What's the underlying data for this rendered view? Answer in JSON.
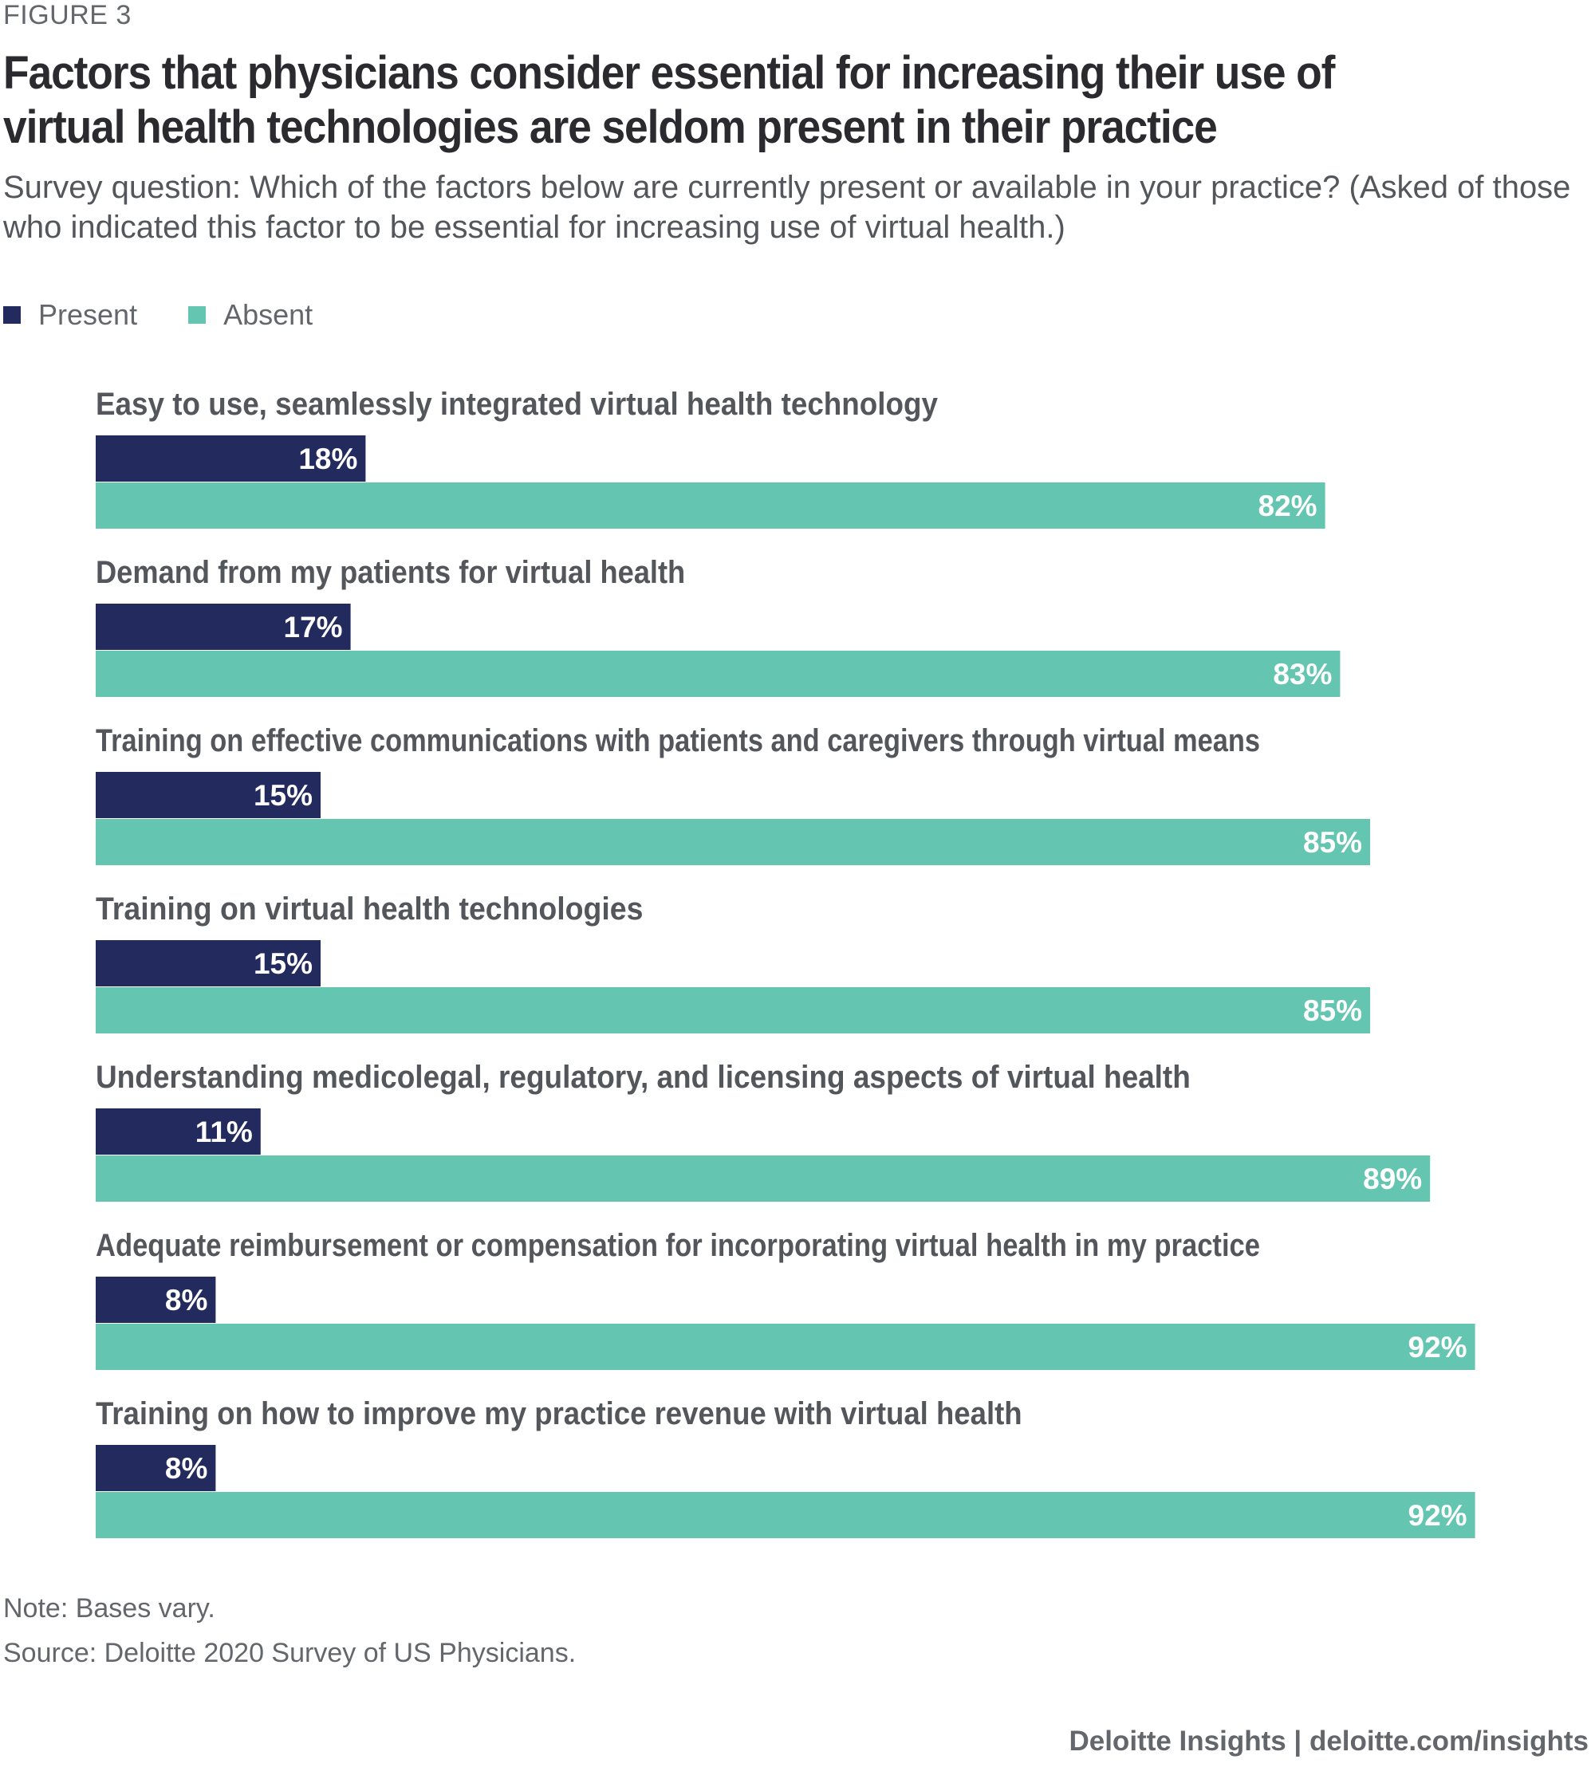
{
  "figure_label": "FIGURE 3",
  "colors": {
    "present": "#222a5e",
    "absent": "#64c5b1"
  },
  "chart_data": {
    "type": "bar",
    "orientation": "horizontal",
    "title": "Factors that physicians consider essential for increasing their use of virtual health technologies are seldom present in their practice",
    "subtitle": "Survey question: Which of the factors below are currently present or available in your practice? (Asked of those who indicated this factor to be essential for increasing use of virtual health.)",
    "legend_placement": "top-left",
    "grid": false,
    "xlim": [
      0,
      100
    ],
    "categories": [
      "Easy to use, seamlessly integrated virtual health technology",
      "Demand from my patients for virtual health",
      "Training on effective communications with patients and caregivers through virtual means",
      "Training on virtual health technologies",
      "Understanding medicolegal, regulatory, and licensing aspects of virtual health",
      "Adequate reimbursement or compensation for incorporating virtual health in my practice",
      "Training on how to improve my practice revenue with virtual health"
    ],
    "series": [
      {
        "name": "Present",
        "values": [
          18,
          17,
          15,
          15,
          11,
          8,
          8
        ]
      },
      {
        "name": "Absent",
        "values": [
          82,
          83,
          85,
          85,
          89,
          92,
          92
        ]
      }
    ],
    "value_suffix": "%"
  },
  "note": "Note: Bases vary.",
  "source": "Source: Deloitte 2020 Survey of US Physicians.",
  "footer": "Deloitte Insights | deloitte.com/insights"
}
